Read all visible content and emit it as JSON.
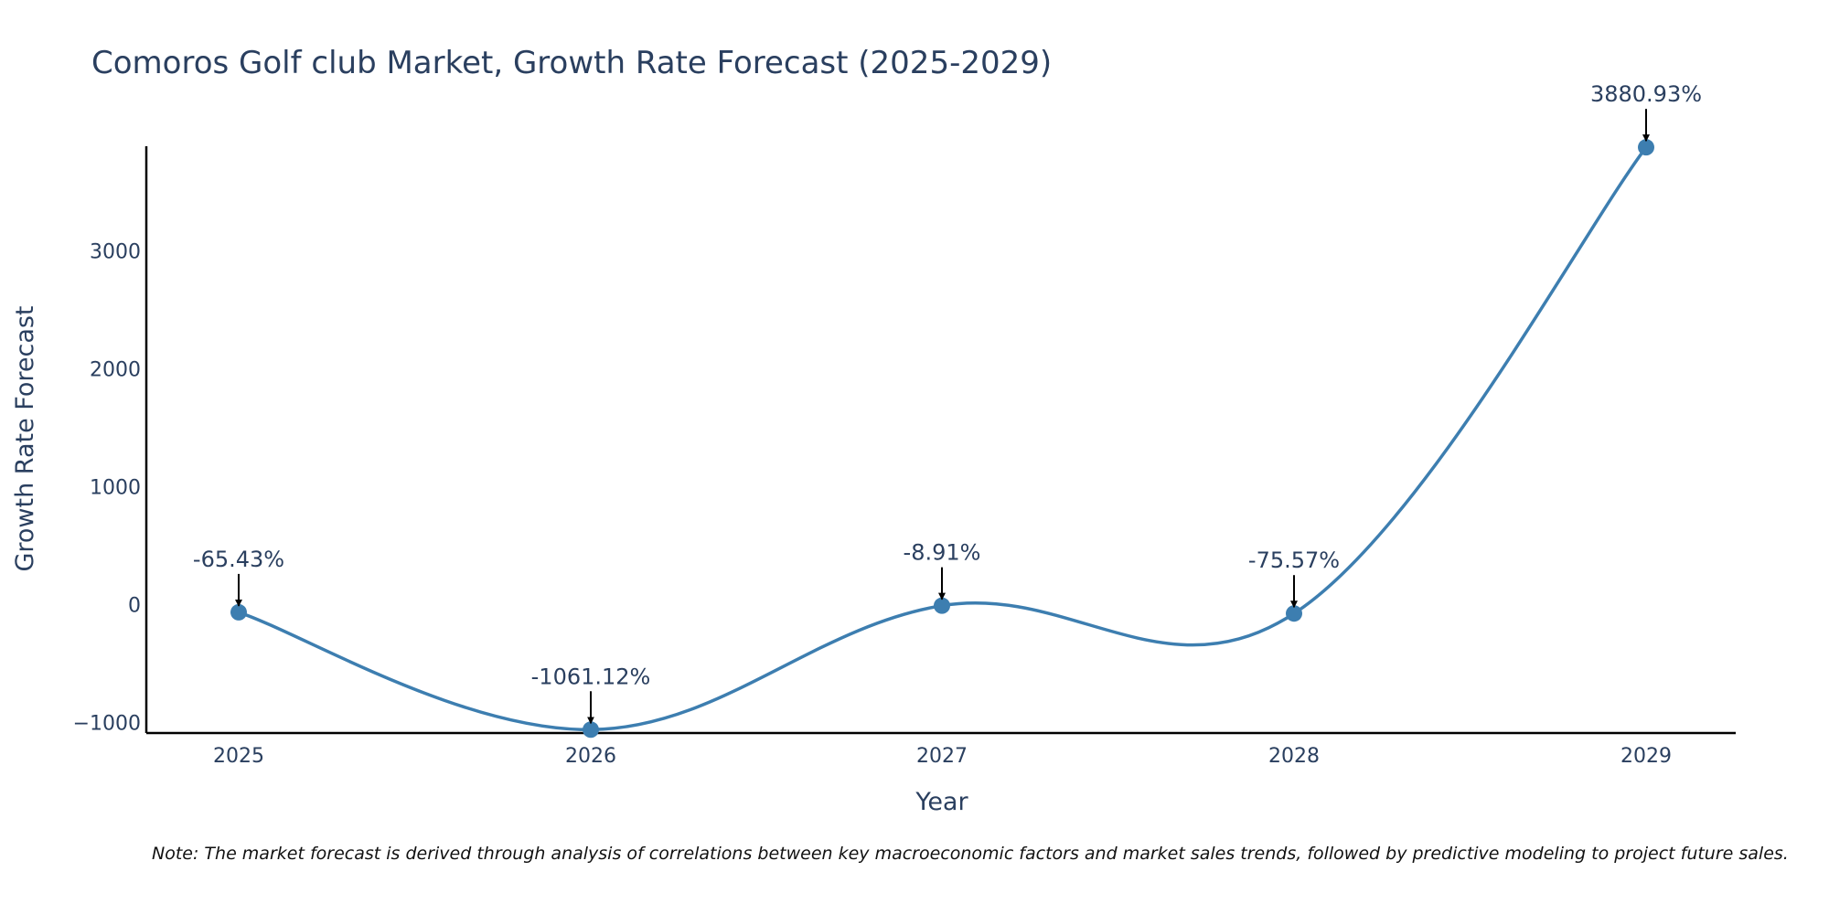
{
  "chart_data": {
    "type": "line",
    "title": "Comoros Golf club Market, Growth Rate Forecast (2025-2029)",
    "xlabel": "Year",
    "ylabel": "Growth Rate Forecast",
    "categories": [
      "2025",
      "2026",
      "2027",
      "2028",
      "2029"
    ],
    "series": [
      {
        "name": "Growth Rate Forecast",
        "values": [
          -65.43,
          -1061.12,
          -8.91,
          -75.57,
          3880.93
        ],
        "labels": [
          "-65.43%",
          "-1061.12%",
          "-8.91%",
          "-75.57%",
          "3880.93%"
        ],
        "color": "#3d7eb0"
      }
    ],
    "ylim": [
      -1090,
      3890
    ],
    "yticks": [
      -1000,
      0,
      1000,
      2000,
      3000
    ],
    "ytick_labels": [
      "−1000",
      "0",
      "1000",
      "2000",
      "3000"
    ],
    "grid": false,
    "legend": "none"
  },
  "note": "Note: The market forecast is derived through analysis of correlations between key macroeconomic factors and market sales trends, followed by predictive modeling to project future sales.",
  "colors": {
    "line": "#3d7eb0",
    "text": "#2a3f5f",
    "axis": "#000000"
  }
}
